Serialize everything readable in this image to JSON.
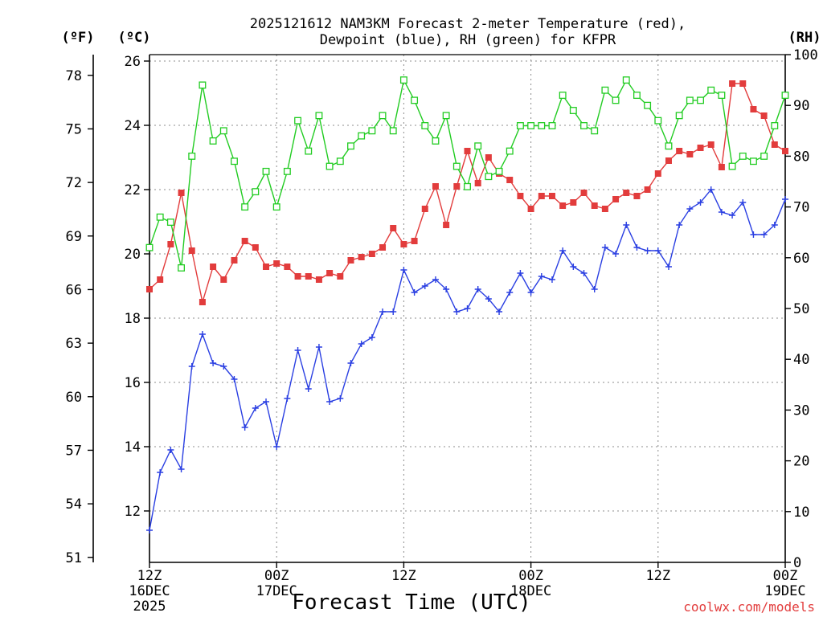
{
  "chart_data": {
    "type": "line",
    "title_lines": [
      "2025121612 NAM3KM Forecast 2-meter Temperature (red),",
      "Dewpoint (blue), RH (green) for KFPR"
    ],
    "xlabel": "Forecast Time (UTC)",
    "credit": "coolwx.com/models",
    "axes": {
      "fahrenheit": {
        "label": "(ºF)",
        "ticks": [
          "51",
          "54",
          "57",
          "60",
          "63",
          "66",
          "69",
          "72",
          "75",
          "78"
        ],
        "tick_values_c": [
          10.556,
          12.222,
          13.889,
          15.556,
          17.222,
          18.889,
          20.556,
          22.222,
          23.889,
          25.556
        ]
      },
      "celsius": {
        "label": "(ºC)",
        "ticks": [
          "12",
          "14",
          "16",
          "18",
          "20",
          "22",
          "24",
          "26"
        ],
        "tick_values": [
          12,
          14,
          16,
          18,
          20,
          22,
          24,
          26
        ],
        "ylim": [
          10.4,
          26.2
        ]
      },
      "rh": {
        "label": "(RH)",
        "ticks": [
          "0",
          "10",
          "20",
          "30",
          "40",
          "50",
          "60",
          "70",
          "80",
          "90",
          "100"
        ],
        "tick_values": [
          0,
          10,
          20,
          30,
          40,
          50,
          60,
          70,
          80,
          90,
          100
        ],
        "ylim": [
          0,
          100
        ]
      },
      "x": {
        "xlim_hours": [
          0,
          60
        ],
        "ticks": [
          {
            "hour": 0,
            "label": "12Z",
            "date": "16DEC",
            "year": "2025"
          },
          {
            "hour": 12,
            "label": "00Z",
            "date": "17DEC",
            "year": ""
          },
          {
            "hour": 24,
            "label": "12Z",
            "date": "",
            "year": ""
          },
          {
            "hour": 36,
            "label": "00Z",
            "date": "18DEC",
            "year": ""
          },
          {
            "hour": 48,
            "label": "12Z",
            "date": "",
            "year": ""
          },
          {
            "hour": 60,
            "label": "00Z",
            "date": "19DEC",
            "year": ""
          }
        ]
      }
    },
    "hours": [
      0,
      1,
      2,
      3,
      4,
      5,
      6,
      7,
      8,
      9,
      10,
      11,
      12,
      13,
      14,
      15,
      16,
      17,
      18,
      19,
      20,
      21,
      22,
      23,
      24,
      25,
      26,
      27,
      28,
      29,
      30,
      31,
      32,
      33,
      34,
      35,
      36,
      37,
      38,
      39,
      40,
      41,
      42,
      43,
      44,
      45,
      46,
      47,
      48,
      49,
      50,
      51,
      52,
      53,
      54,
      55,
      56,
      57,
      58,
      59,
      60
    ],
    "series": [
      {
        "name": "2-meter Temperature",
        "unit": "C",
        "color": "#e23c3c",
        "marker": "filled-square",
        "values": [
          18.9,
          19.2,
          20.3,
          21.9,
          20.1,
          18.5,
          19.6,
          19.2,
          19.8,
          20.4,
          20.2,
          19.6,
          19.7,
          19.6,
          19.3,
          19.3,
          19.2,
          19.4,
          19.3,
          19.8,
          19.9,
          20.0,
          20.2,
          20.8,
          20.3,
          20.4,
          21.4,
          22.1,
          20.9,
          22.1,
          23.2,
          22.2,
          23.0,
          22.5,
          22.3,
          21.8,
          21.4,
          21.8,
          21.8,
          21.5,
          21.6,
          21.9,
          21.5,
          21.4,
          21.7,
          21.9,
          21.8,
          22.0,
          22.5,
          22.9,
          23.2,
          23.1,
          23.3,
          23.4,
          22.7,
          25.3,
          25.3,
          24.5,
          24.3,
          23.4,
          23.2
        ]
      },
      {
        "name": "Dewpoint",
        "unit": "C",
        "color": "#2a3fe2",
        "marker": "plus",
        "values": [
          11.4,
          13.2,
          13.9,
          13.3,
          16.5,
          17.5,
          16.6,
          16.5,
          16.1,
          14.6,
          15.2,
          15.4,
          14.0,
          15.5,
          17.0,
          15.8,
          17.1,
          15.4,
          15.5,
          16.6,
          17.2,
          17.4,
          18.2,
          18.2,
          19.5,
          18.8,
          19.0,
          19.2,
          18.9,
          18.2,
          18.3,
          18.9,
          18.6,
          18.2,
          18.8,
          19.4,
          18.8,
          19.3,
          19.2,
          20.1,
          19.6,
          19.4,
          18.9,
          20.2,
          20.0,
          20.9,
          20.2,
          20.1,
          20.1,
          19.6,
          20.9,
          21.4,
          21.6,
          22.0,
          21.3,
          21.2,
          21.6,
          20.6,
          20.6,
          20.9,
          21.7
        ]
      },
      {
        "name": "RH",
        "unit": "%",
        "color": "#22cc22",
        "marker": "open-square",
        "values": [
          62,
          68,
          67,
          58,
          80,
          94,
          83,
          85,
          79,
          70,
          73,
          77,
          70,
          77,
          87,
          81,
          88,
          78,
          79,
          82,
          84,
          85,
          88,
          85,
          95,
          91,
          86,
          83,
          88,
          78,
          74,
          82,
          76,
          77,
          81,
          86,
          86,
          86,
          86,
          92,
          89,
          86,
          85,
          93,
          91,
          95,
          92,
          90,
          87,
          82,
          88,
          91,
          91,
          93,
          92,
          78,
          80,
          79,
          80,
          86,
          92
        ]
      }
    ]
  }
}
